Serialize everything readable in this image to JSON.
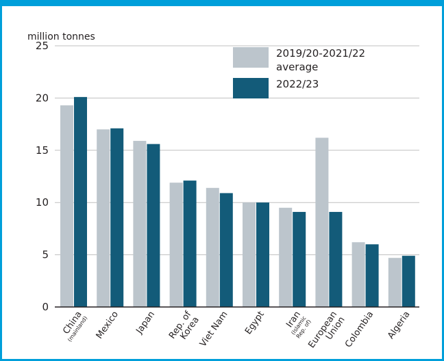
{
  "chart_data": {
    "type": "bar",
    "title": "",
    "unit_label": "million tonnes",
    "xlabel": "",
    "ylabel": "million tonnes",
    "ylim": [
      0,
      25
    ],
    "yticks": [
      0,
      5,
      10,
      15,
      20,
      25
    ],
    "grid": true,
    "legend_position": "top-right",
    "categories": [
      {
        "name": "China",
        "sub": "(mainland)"
      },
      {
        "name": "Mexico",
        "sub": ""
      },
      {
        "name": "Japan",
        "sub": ""
      },
      {
        "name": "Rep. of",
        "sub": "Korea"
      },
      {
        "name": "Viet Nam",
        "sub": ""
      },
      {
        "name": "Egypt",
        "sub": ""
      },
      {
        "name": "Iran",
        "sub": "(Islamic Rep. of)"
      },
      {
        "name": "European",
        "sub": "Union"
      },
      {
        "name": "Colombia",
        "sub": ""
      },
      {
        "name": "Algeria",
        "sub": ""
      }
    ],
    "series": [
      {
        "name": "2019/20-2021/22 average",
        "legend_lines": [
          "2019/20-2021/22",
          "average"
        ],
        "color": "#bcc5cc",
        "values": [
          19.3,
          17.0,
          15.9,
          11.9,
          11.4,
          10.0,
          9.5,
          16.2,
          6.2,
          4.7
        ]
      },
      {
        "name": "2022/23",
        "legend_lines": [
          "2022/23"
        ],
        "color": "#135b79",
        "values": [
          20.1,
          17.1,
          15.6,
          12.1,
          10.9,
          10.0,
          9.1,
          9.1,
          6.0,
          4.9
        ]
      }
    ]
  },
  "colors": {
    "border": "#009fda",
    "grid": "#bfbfbf",
    "axis": "#231f20"
  }
}
